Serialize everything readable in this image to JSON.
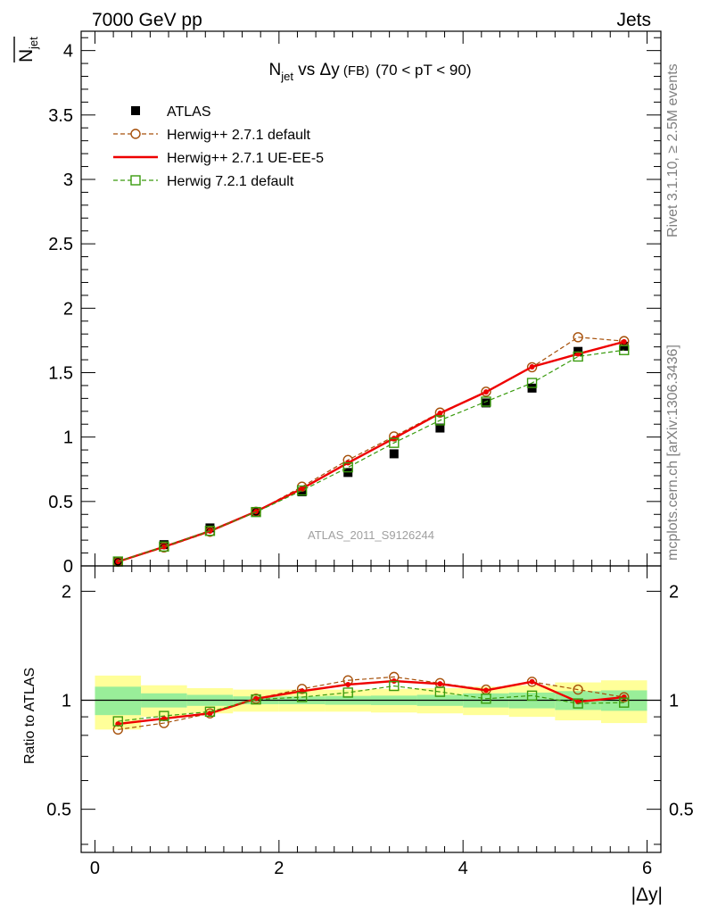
{
  "header": {
    "left": "7000 GeV pp",
    "right": "Jets"
  },
  "side_labels": {
    "rivet": "Rivet 3.1.10, ≥ 2.5M events",
    "mcplots": "mcplots.cern.ch [arXiv:1306.3436]"
  },
  "chart_data": [
    {
      "type": "scatter",
      "panel": "main",
      "title_main": "N",
      "title_sub": "jet",
      "title_rest": " vs Δy",
      "title_small": " (FB)",
      "title_range": "(70 < pT <  90)",
      "ylabel_main": "N",
      "ylabel_sub": "jet",
      "watermark": "ATLAS_2011_S9126244",
      "xlim": [
        -0.15,
        6.15
      ],
      "ylim": [
        0,
        4.15
      ],
      "x_ticks": [
        0,
        2,
        4,
        6
      ],
      "y_ticks": [
        0,
        0.5,
        1,
        1.5,
        2,
        2.5,
        3,
        3.5,
        4
      ],
      "y_tick_labels": [
        "0",
        "0.5",
        "1",
        "1.5",
        "2",
        "2.5",
        "3",
        "3.5",
        "4"
      ],
      "x": [
        0.25,
        0.75,
        1.25,
        1.75,
        2.25,
        2.75,
        3.25,
        3.75,
        4.25,
        4.75,
        5.25,
        5.75
      ],
      "series": [
        {
          "name": "ATLAS",
          "color": "#000000",
          "style": "data",
          "values": [
            0.038,
            0.165,
            0.295,
            0.418,
            0.575,
            0.725,
            0.87,
            1.07,
            1.265,
            1.38,
            1.665,
            1.705
          ]
        },
        {
          "name": "Herwig++ 2.7.1 default",
          "color": "#a6500a",
          "style": "circle-dashed",
          "values": [
            0.032,
            0.143,
            0.265,
            0.42,
            0.615,
            0.822,
            1.005,
            1.19,
            1.352,
            1.542,
            1.775,
            1.745
          ]
        },
        {
          "name": "Herwig++ 2.7.1 UE-EE-5",
          "color": "#ee0000",
          "style": "solid",
          "values": [
            0.033,
            0.148,
            0.27,
            0.422,
            0.6,
            0.8,
            0.99,
            1.185,
            1.35,
            1.545,
            1.645,
            1.74
          ]
        },
        {
          "name": "Herwig 7.2.1 default",
          "color": "#3a9b0e",
          "style": "square-dashed",
          "values": [
            0.034,
            0.15,
            0.272,
            0.418,
            0.585,
            0.765,
            0.955,
            1.13,
            1.275,
            1.42,
            1.625,
            1.675
          ]
        }
      ]
    },
    {
      "type": "scatter",
      "panel": "ratio",
      "ylabel": "Ratio to ATLAS",
      "xlabel": "|Δy|",
      "log_y": true,
      "xlim": [
        -0.15,
        6.15
      ],
      "ylim": [
        0.38,
        2.35
      ],
      "x_ticks": [
        0,
        2,
        4,
        6
      ],
      "y_ticks": [
        0.5,
        1,
        2
      ],
      "y_tick_labels": [
        "0.5",
        "1",
        "2"
      ],
      "x_bins": [
        0,
        0.5,
        1,
        1.5,
        2,
        2.5,
        3,
        3.5,
        4,
        4.5,
        5,
        5.5,
        6
      ],
      "band_inner": [
        0.09,
        0.045,
        0.035,
        0.025,
        0.025,
        0.028,
        0.03,
        0.035,
        0.045,
        0.05,
        0.06,
        0.065
      ],
      "band_outer": [
        0.17,
        0.1,
        0.08,
        0.07,
        0.07,
        0.07,
        0.075,
        0.08,
        0.09,
        0.1,
        0.12,
        0.135
      ],
      "x": [
        0.25,
        0.75,
        1.25,
        1.75,
        2.25,
        2.75,
        3.25,
        3.75,
        4.25,
        4.75,
        5.25,
        5.75
      ],
      "series": [
        {
          "name": "Herwig++ 2.7.1 default",
          "color": "#a6500a",
          "style": "circle-dashed",
          "values": [
            0.83,
            0.865,
            0.92,
            1.01,
            1.075,
            1.135,
            1.16,
            1.115,
            1.07,
            1.125,
            1.07,
            1.02
          ]
        },
        {
          "name": "Herwig++ 2.7.1 UE-EE-5",
          "color": "#ee0000",
          "style": "solid",
          "values": [
            0.86,
            0.89,
            0.92,
            1.01,
            1.06,
            1.105,
            1.13,
            1.11,
            1.065,
            1.125,
            0.99,
            1.02
          ]
        },
        {
          "name": "Herwig 7.2.1 default",
          "color": "#3a9b0e",
          "style": "square-dashed",
          "values": [
            0.875,
            0.905,
            0.93,
            1.005,
            1.02,
            1.05,
            1.095,
            1.055,
            1.01,
            1.03,
            0.98,
            0.985
          ]
        }
      ]
    }
  ]
}
